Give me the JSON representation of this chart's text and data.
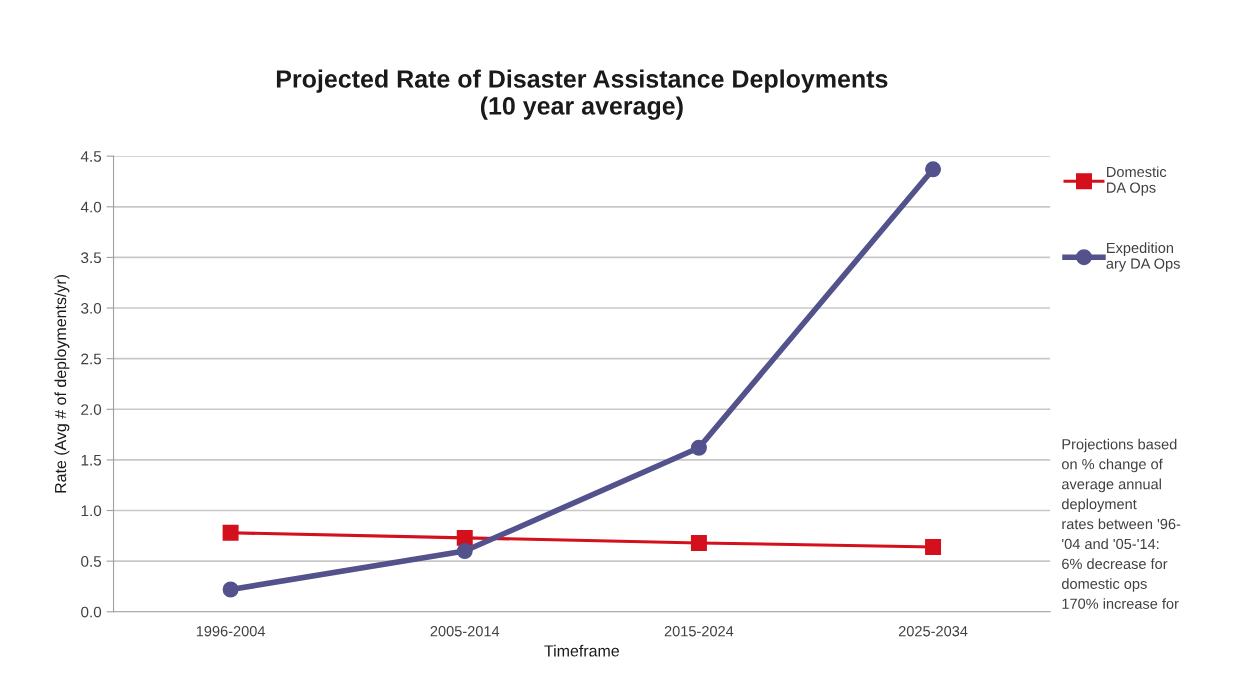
{
  "chart_data": {
    "type": "line",
    "title": "Projected Rate of Disaster Assistance Deployments\n(10 year average)",
    "xlabel": "Timeframe",
    "ylabel": "Rate (Avg # of deployments/yr)",
    "categories": [
      "1996-2004",
      "2005-2014",
      "2015-2024",
      "2025-2034"
    ],
    "series": [
      {
        "name": "Domestic\nDA Ops",
        "color": "#d4101c",
        "marker": "square",
        "values": [
          0.78,
          0.73,
          0.68,
          0.64
        ]
      },
      {
        "name": "Expedition\nary DA Ops",
        "color": "#53528c",
        "marker": "circle",
        "values": [
          0.22,
          0.6,
          1.62,
          4.37
        ]
      }
    ],
    "ylim": [
      0,
      4.5
    ],
    "yticks": [
      {
        "value": 0,
        "label": "0.0"
      },
      {
        "value": 0.5,
        "label": "0.5"
      },
      {
        "value": 1,
        "label": "1.0"
      },
      {
        "value": 1.5,
        "label": "1.5"
      },
      {
        "value": 2,
        "label": "2.0"
      },
      {
        "value": 2.5,
        "label": "2.5"
      },
      {
        "value": 3,
        "label": "3.0"
      },
      {
        "value": 3.5,
        "label": "3.5"
      },
      {
        "value": 4,
        "label": "4.0"
      },
      {
        "value": 4.5,
        "label": "4.5"
      }
    ],
    "grid": "y",
    "legend": "right",
    "line_style": "solid",
    "annotations": [
      "Projections based\non % change of\naverage annual\ndeployment\nrates between '96-\n'04 and '05-'14:\n6% decrease for\ndomestic ops\n170% increase for"
    ]
  }
}
